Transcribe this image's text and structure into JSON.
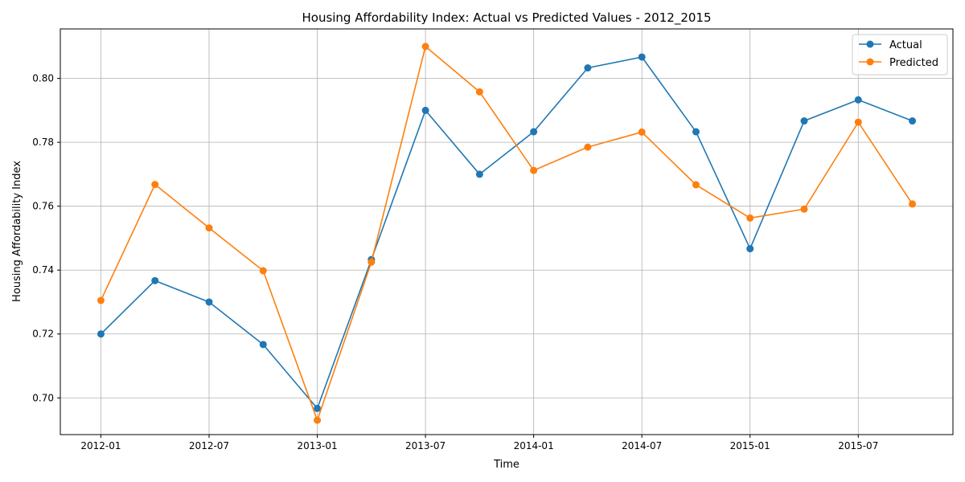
{
  "chart_data": {
    "type": "line",
    "title": "Housing Affordability Index: Actual vs Predicted Values - 2012_2015",
    "xlabel": "Time",
    "ylabel": "Housing Affordability Index",
    "grid": true,
    "legend_position": "upper-right",
    "x": [
      "2012-01",
      "2012-04",
      "2012-07",
      "2012-10",
      "2013-01",
      "2013-04",
      "2013-07",
      "2013-10",
      "2014-01",
      "2014-04",
      "2014-07",
      "2014-10",
      "2015-01",
      "2015-04",
      "2015-07",
      "2015-10"
    ],
    "x_ticks": [
      "2012-01",
      "2012-07",
      "2013-01",
      "2013-07",
      "2014-01",
      "2014-07",
      "2015-01",
      "2015-07"
    ],
    "y_ticks": [
      "0.70",
      "0.72",
      "0.74",
      "0.76",
      "0.78",
      "0.80"
    ],
    "ylim": [
      0.6885,
      0.8155
    ],
    "series": [
      {
        "name": "Actual",
        "color": "#1f77b4",
        "values": [
          0.72,
          0.7367,
          0.73,
          0.7167,
          0.6967,
          0.7433,
          0.79,
          0.77,
          0.7833,
          0.8033,
          0.8067,
          0.7833,
          0.7467,
          0.7867,
          0.7933,
          0.7867
        ]
      },
      {
        "name": "Predicted",
        "color": "#ff7f0e",
        "values": [
          0.7305,
          0.7668,
          0.7532,
          0.7398,
          0.693,
          0.7425,
          0.81,
          0.7958,
          0.7712,
          0.7785,
          0.7832,
          0.7667,
          0.7563,
          0.7591,
          0.7863,
          0.7607
        ]
      }
    ]
  }
}
